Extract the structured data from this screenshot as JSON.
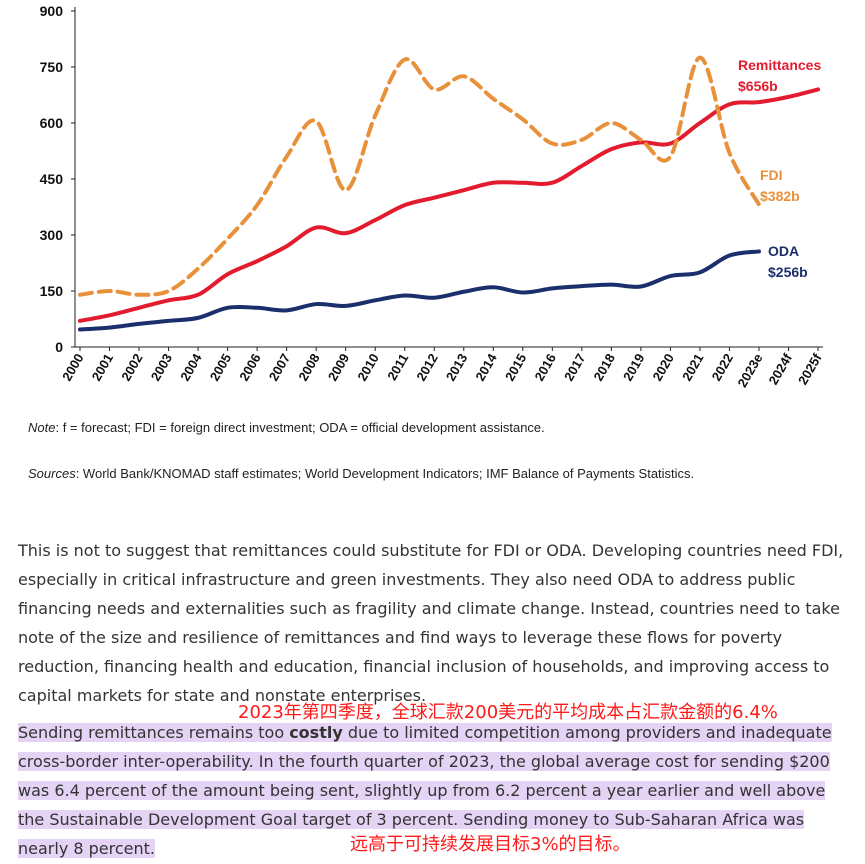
{
  "chart_data": {
    "type": "line",
    "x": [
      "2000",
      "2001",
      "2002",
      "2003",
      "2004",
      "2005",
      "2006",
      "2007",
      "2008",
      "2009",
      "2010",
      "2011",
      "2012",
      "2013",
      "2014",
      "2015",
      "2016",
      "2017",
      "2018",
      "2019",
      "2020",
      "2021",
      "2022",
      "2023e",
      "2024f",
      "2025f"
    ],
    "ylim": [
      0,
      900
    ],
    "yticks": [
      0,
      150,
      300,
      450,
      600,
      750,
      900
    ],
    "grid": false,
    "series": [
      {
        "name": "Remittances",
        "value_label": "$656b",
        "color": "#e31b2e",
        "style": "solid",
        "values": [
          70,
          85,
          105,
          125,
          140,
          195,
          230,
          270,
          320,
          305,
          340,
          380,
          400,
          420,
          440,
          440,
          440,
          485,
          530,
          548,
          545,
          600,
          650,
          656,
          670,
          690
        ]
      },
      {
        "name": "FDI",
        "value_label": "$382b",
        "color": "#e8913a",
        "style": "dashed",
        "values": [
          140,
          150,
          140,
          150,
          210,
          290,
          380,
          510,
          605,
          420,
          620,
          770,
          690,
          725,
          665,
          610,
          545,
          555,
          600,
          555,
          510,
          775,
          520,
          382,
          null,
          null
        ]
      },
      {
        "name": "ODA",
        "value_label": "$256b",
        "color": "#1a2f6b",
        "style": "solid",
        "values": [
          47,
          52,
          62,
          70,
          78,
          105,
          105,
          98,
          115,
          110,
          125,
          138,
          132,
          148,
          160,
          146,
          157,
          163,
          167,
          162,
          190,
          200,
          245,
          256,
          null,
          null
        ]
      }
    ]
  },
  "note": {
    "label": "Note",
    "text": ": f = forecast; FDI = foreign direct investment; ODA = official development assistance."
  },
  "sources": {
    "label": "Sources",
    "text": ": World Bank/KNOMAD staff estimates; World Development Indicators; IMF Balance of Payments Statistics."
  },
  "paragraph1": "This is not to suggest that remittances could substitute for FDI or ODA. Developing countries need FDI, especially in critical infrastructure and green investments. They also need ODA to address public financing needs and externalities such as fragility and climate change. Instead, countries need to take note of the size and resilience of remittances and find ways to leverage these flows for poverty reduction, financing health and education, financial inclusion of households, and improving access to capital markets for state and nonstate enterprises.",
  "paragraph2": {
    "before": "Sending remittances remains too ",
    "bold": "costly",
    "after": " due to limited competition among providers and inadequate cross-border inter-operability. In the fourth quarter of 2023, the global average cost for sending $200 was 6.4 percent of the amount being sent, slightly up from 6.2 percent a year earlier and well above the Sustainable Development Goal target of 3 percent. Sending money to Sub-Saharan Africa was nearly 8 percent."
  },
  "annotations": {
    "cn1": "2023年第四季度，全球汇款200美元的平均成本占汇款金额的6.4%",
    "cn2": "远高于可持续发展目标3%的目标。"
  }
}
